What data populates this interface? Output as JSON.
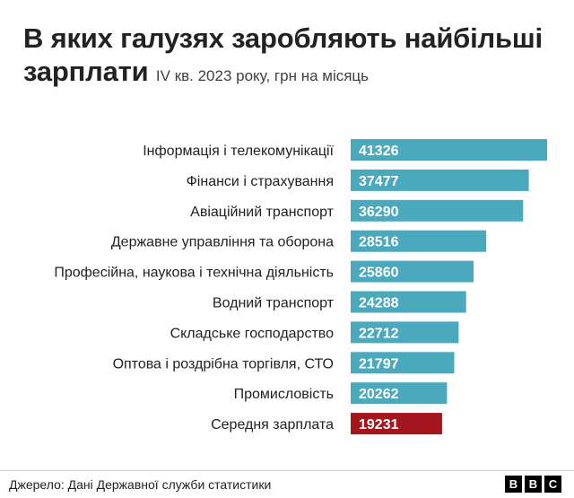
{
  "header": {
    "title": "В яких галузях заробляють найбільші зарплати",
    "subtitle": "IV кв. 2023 року, грн на місяць"
  },
  "chart_data": {
    "type": "bar",
    "orientation": "horizontal",
    "categories": [
      "Інформація і телекомунікації",
      "Фінанси і страхування",
      "Авіаційний транспорт",
      "Державне управління та оборона",
      "Професійна, наукова і технічна діяльність",
      "Водний транспорт",
      "Складське господарство",
      "Оптова і роздрібна торгівля, СТО",
      "Промисловість",
      "Середня зарплата"
    ],
    "values": [
      41326,
      37477,
      36290,
      28516,
      25860,
      24288,
      22712,
      21797,
      20262,
      19231
    ],
    "value_labels": [
      "41326",
      "37477",
      "36290",
      "28516",
      "25860",
      "24288",
      "22712",
      "21797",
      "20262",
      "19231"
    ],
    "title": "В яких галузях заробляють найбільші зарплати",
    "subtitle": "IV кв. 2023 року, грн на місяць",
    "xlim": [
      0,
      41326
    ],
    "grid": false,
    "legend": false,
    "colors": {
      "bar": "#4ba9be",
      "highlight": "#a3161e",
      "value_text": "#ffffff"
    },
    "highlight_category": "Середня зарплата"
  },
  "footer": {
    "source": "Джерело: Дані Державної служби статистики",
    "logo_letters": [
      "B",
      "B",
      "C"
    ]
  }
}
